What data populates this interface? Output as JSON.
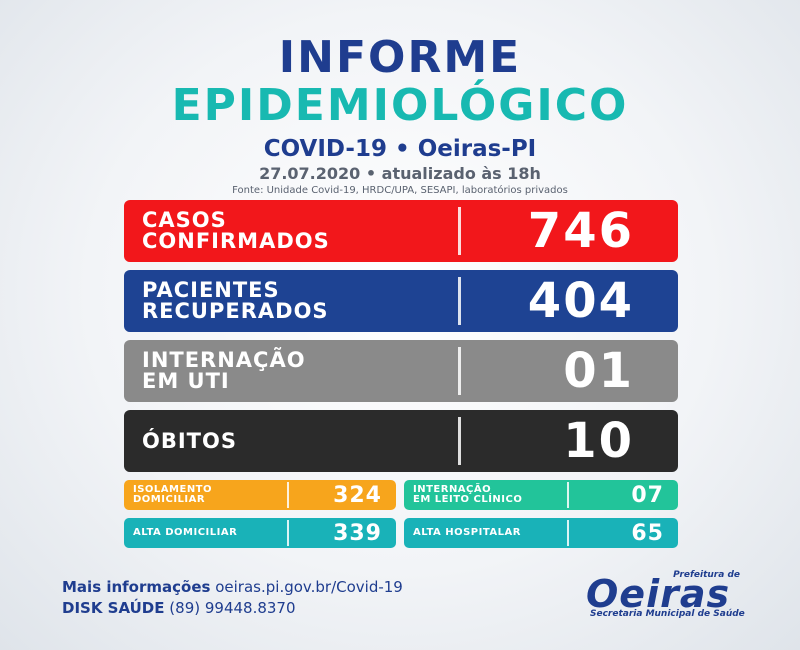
{
  "header": {
    "title_line1": "INFORME",
    "title_line2": "EPIDEMIOLÓGICO",
    "subtitle": "COVID-19 • Oeiras-PI",
    "date": "27.07.2020 • atualizado às 18h",
    "source": "Fonte: Unidade Covid-19, HRDC/UPA, SESAPI, laboratórios privados"
  },
  "stats": [
    {
      "label": "CASOS\nCONFIRMADOS",
      "value": "746",
      "color": "#f2171b"
    },
    {
      "label": "PACIENTES\nRECUPERADOS",
      "value": "404",
      "color": "#1e4393"
    },
    {
      "label": "INTERNAÇÃO\nEM UTI",
      "value": "01",
      "color": "#8a8a8a"
    },
    {
      "label": "ÓBITOS",
      "value": "10",
      "color": "#2b2b2b"
    }
  ],
  "small_stats": [
    {
      "label": "ISOLAMENTO\nDOMICILIAR",
      "value": "324",
      "color": "#f7a51c"
    },
    {
      "label": "INTERNAÇÃO\nEM LEITO CLÍNICO",
      "value": "07",
      "color": "#22c49a"
    },
    {
      "label": "ALTA DOMICILIAR",
      "value": "339",
      "color": "#19b2b8"
    },
    {
      "label": "ALTA HOSPITALAR",
      "value": "65",
      "color": "#19b2b8"
    }
  ],
  "footer": {
    "info_label": "Mais informações",
    "info_url": "oeiras.pi.gov.br/Covid-19",
    "disk_label": "DISK SAÚDE",
    "disk_phone": "(89) 99448.8370"
  },
  "logo": {
    "prefeitura": "Prefeitura de",
    "name": "Oeiras",
    "secretaria": "Secretaria Municipal de Saúde"
  }
}
